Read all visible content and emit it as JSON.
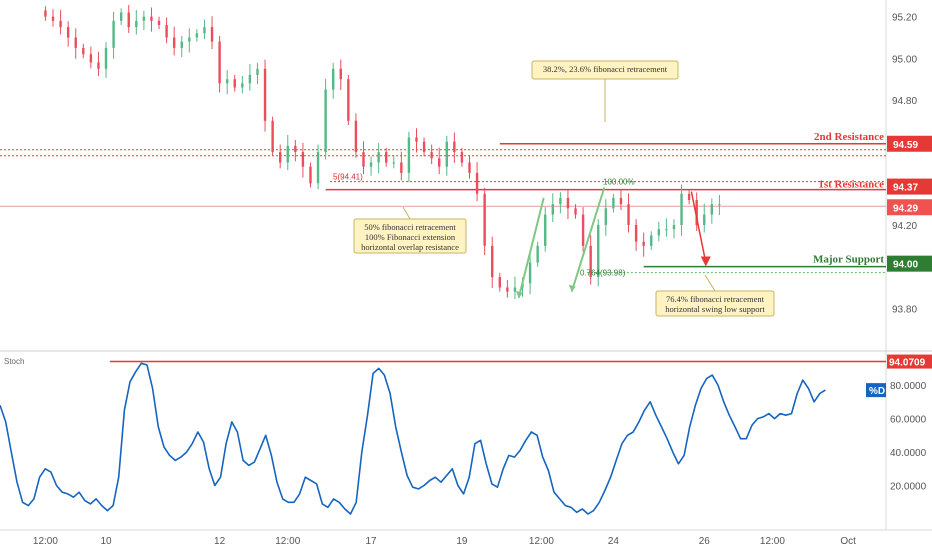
{
  "chart_data": {
    "type": "candlestick",
    "price_panel": {
      "ylim": [
        93.6,
        95.28
      ],
      "y_ticks": [
        "95.20",
        "95.00",
        "94.80",
        "94.40",
        "94.20",
        "93.80"
      ],
      "x_ticks": [
        "12:00",
        "10",
        "12",
        "12:00",
        "17",
        "19",
        "12:00",
        "24",
        "26",
        "12:00",
        "Oct"
      ],
      "x_tick_index": [
        0.0,
        8.0,
        23.0,
        32.0,
        43.0,
        55.0,
        65.5,
        75.0,
        87.0,
        96.0,
        106.0
      ],
      "x_range": [
        -6.0,
        111.0
      ],
      "closes": [
        95.2,
        95.18,
        95.15,
        95.1,
        95.05,
        95.02,
        94.98,
        94.95,
        95.05,
        95.18,
        95.22,
        95.15,
        95.18,
        95.2,
        95.18,
        95.16,
        95.1,
        95.05,
        95.08,
        95.1,
        95.12,
        95.15,
        95.08,
        94.88,
        94.9,
        94.86,
        94.88,
        94.92,
        94.95,
        94.7,
        94.55,
        94.5,
        94.58,
        94.55,
        94.48,
        94.4,
        94.55,
        94.85,
        94.95,
        94.9,
        94.7,
        94.55,
        94.48,
        94.5,
        94.55,
        94.5,
        94.5,
        94.45,
        94.62,
        94.6,
        94.55,
        94.52,
        94.48,
        94.6,
        94.55,
        94.5,
        94.45,
        94.35,
        94.1,
        93.95,
        93.9,
        93.88,
        93.9,
        93.92,
        94.02,
        94.1,
        94.25,
        94.3,
        94.33,
        94.28,
        94.25,
        94.1,
        93.95,
        94.2,
        94.28,
        94.33,
        94.3,
        94.2,
        94.12,
        94.1,
        94.15,
        94.18,
        94.18,
        94.2,
        94.35,
        94.32,
        94.2,
        94.25,
        94.3,
        94.3
      ],
      "x_start_index": 0,
      "levels": [
        {
          "name": "2nd Resistance",
          "label": "2nd Resistance",
          "value": 94.59,
          "tag": "94.59",
          "color": "#e53935"
        },
        {
          "name": "1st Resistance",
          "label": "1st Resistance",
          "value": 94.37,
          "tag": "94.37",
          "color": "#e53935"
        },
        {
          "name": "current",
          "label": "",
          "value": 94.29,
          "tag": "94.29",
          "color": "#ef5350"
        },
        {
          "name": "Major Support",
          "label": "Major Support",
          "value": 94.0,
          "tag": "94.00",
          "color": "#2e7d32"
        }
      ],
      "annotations": [
        {
          "id": "fib-382",
          "lines": [
            "38.2%, 23.6% fibonacci retracement"
          ]
        },
        {
          "id": "fib-50",
          "lines": [
            "50% fibonacci retracement",
            "100% Fibonacci extension",
            "horizontal overlap resistance"
          ]
        },
        {
          "id": "fib-764",
          "lines": [
            "76.4% fibonacci retracement",
            "horizontal swing low support"
          ]
        }
      ],
      "fib_labels": [
        {
          "id": "fib-5",
          "text": "5(94.41)"
        },
        {
          "id": "fib-100",
          "text": "100.00%"
        },
        {
          "id": "fib-0764",
          "text": "0.764(93.98)"
        }
      ]
    },
    "stoch_panel": {
      "title": "Stoch",
      "ylim": [
        0,
        95
      ],
      "y_ticks": [
        "80.0000",
        "60.0000",
        "40.0000",
        "20.0000"
      ],
      "level_tag": "94.0709",
      "series_tag": "%D",
      "series": [
        {
          "name": "%D",
          "values": [
            68,
            58,
            40,
            22,
            10,
            8,
            12,
            25,
            30,
            28,
            20,
            16,
            15,
            13,
            16,
            11,
            9,
            12,
            8,
            5,
            8,
            25,
            65,
            82,
            88,
            93,
            92,
            78,
            55,
            43,
            38,
            35,
            37,
            40,
            45,
            52,
            46,
            30,
            20,
            25,
            45,
            58,
            52,
            35,
            32,
            34,
            42,
            50,
            38,
            22,
            12,
            10,
            10,
            15,
            25,
            23,
            21,
            9,
            7,
            12,
            10,
            6,
            3,
            10,
            40,
            62,
            87,
            90,
            86,
            75,
            55,
            40,
            26,
            19,
            18,
            20,
            23,
            25,
            22,
            26,
            30,
            20,
            15,
            25,
            45,
            47,
            33,
            21,
            19,
            30,
            38,
            37,
            41,
            47,
            52,
            50,
            37,
            29,
            16,
            12,
            8,
            7,
            4,
            6,
            3,
            5,
            10,
            17,
            25,
            35,
            45,
            50,
            52,
            58,
            65,
            70,
            62,
            55,
            48,
            40,
            33,
            38,
            55,
            68,
            78,
            84,
            86,
            80,
            70,
            62,
            55,
            48,
            48,
            56,
            60,
            61,
            63,
            60,
            63,
            62,
            63,
            75,
            83,
            78,
            70,
            75,
            77
          ]
        },
        {
          "name": "%K",
          "values": []
        }
      ]
    },
    "stoch_x_tick_index": [
      0.0,
      8.0,
      23.0,
      32.0,
      43.0,
      55.0,
      65.5,
      75.0,
      87.0,
      96.0,
      106.0
    ]
  }
}
